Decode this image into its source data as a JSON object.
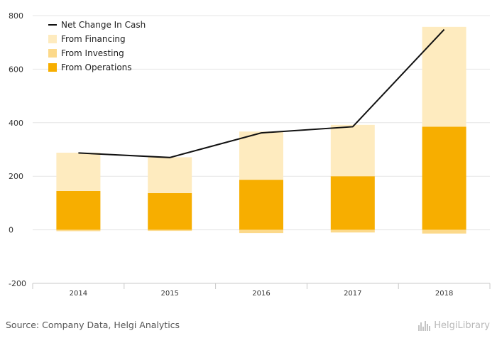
{
  "chart_data": {
    "type": "bar",
    "stacked": true,
    "categories": [
      "2014",
      "2015",
      "2016",
      "2017",
      "2018"
    ],
    "series": [
      {
        "name": "From Operations",
        "kind": "bar",
        "color": "#f7ae00",
        "values": [
          145,
          137,
          187,
          200,
          385
        ]
      },
      {
        "name": "From Investing",
        "kind": "bar",
        "color": "#fcd98a",
        "values": [
          -5,
          -4,
          -12,
          -10,
          -14
        ]
      },
      {
        "name": "From Financing",
        "kind": "bar",
        "color": "#feebbf",
        "values": [
          143,
          134,
          180,
          192,
          373
        ]
      },
      {
        "name": "Net Change In Cash",
        "kind": "line",
        "color": "#111111",
        "values": [
          287,
          270,
          362,
          385,
          748
        ]
      }
    ],
    "ylim": [
      -200,
      800
    ],
    "yticks": [
      -200,
      0,
      200,
      400,
      600,
      800
    ],
    "grid": true,
    "legend": "top-left",
    "legend_order": [
      "Net Change In Cash",
      "From Financing",
      "From Investing",
      "From Operations"
    ]
  },
  "footer": {
    "source": "Source: Company Data, Helgi Analytics",
    "logo": "HelgiLibrary"
  }
}
